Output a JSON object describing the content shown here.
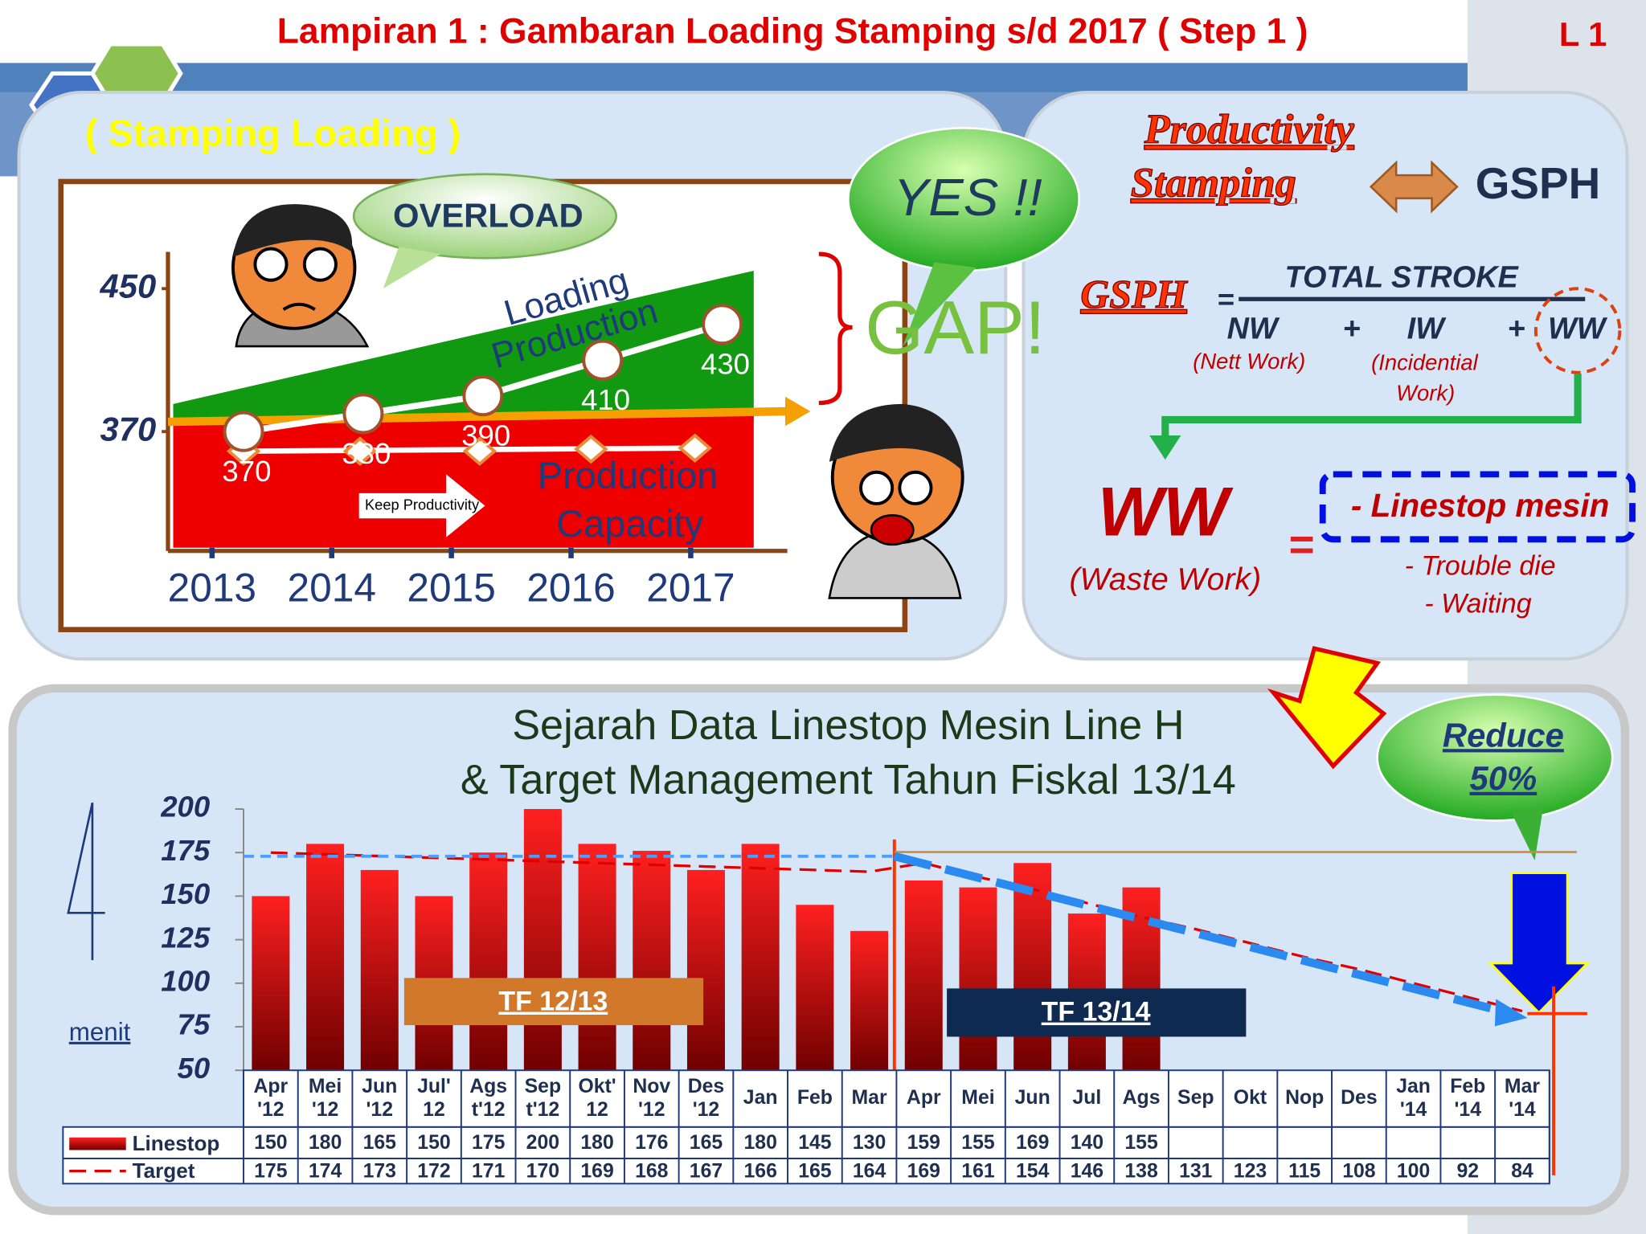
{
  "header": {
    "title": "Lampiran 1 : Gambaran Loading Stamping s/d 2017 ( Step 1 )",
    "page": "L 1"
  },
  "gsph_panel": {
    "title_lines": [
      "Productivity",
      "Stamping"
    ],
    "gsph": "GSPH",
    "formula": {
      "lhs": "GSPH",
      "eq": "=",
      "numerator": "TOTAL STROKE",
      "terms": [
        "NW",
        "+",
        "IW",
        "+",
        "WW"
      ],
      "notes": [
        "(Nett Work)",
        "(Incidential",
        "Work)"
      ]
    },
    "ww": {
      "label": "WW",
      "note": "(Waste Work)",
      "eq": "=",
      "items": [
        "- Linestop mesin",
        "- Trouble die",
        "- Waiting"
      ]
    }
  },
  "chart_data": [
    {
      "type": "line",
      "title": "( Stamping Loading )",
      "categories": [
        "2013",
        "2014",
        "2015",
        "2016",
        "2017"
      ],
      "series": [
        {
          "name": "Loading",
          "color": "#ffffff",
          "values": [
            370,
            380,
            390,
            410,
            430
          ]
        }
      ],
      "ylim": [
        305,
        470
      ],
      "yticks": [
        370,
        450
      ],
      "annotations": {
        "overload": "OVERLOAD",
        "loading": "Loading",
        "production": "Production",
        "capacity_lines": [
          "Production",
          "Capacity"
        ],
        "keep": "Keep Productivity",
        "yes": "YES !!",
        "gap": "GAP!"
      }
    },
    {
      "type": "bar",
      "title": [
        "Sejarah Data Linestop Mesin Line H",
        "& Target Management Tahun Fiskal 13/14"
      ],
      "y_label": "menit",
      "categories": [
        "Apr '12",
        "Mei '12",
        "Jun '12",
        "Jul' 12",
        "Ags t'12",
        "Sep t'12",
        "Okt' 12",
        "Nov '12",
        "Des '12",
        "Jan",
        "Feb",
        "Mar",
        "Apr",
        "Mei",
        "Jun",
        "Jul",
        "Ags",
        "Sep",
        "Okt",
        "Nop",
        "Des",
        "Jan '14",
        "Feb '14",
        "Mar '14"
      ],
      "series": [
        {
          "name": "Linestop",
          "color": "#cc0000",
          "values": [
            150,
            180,
            165,
            150,
            175,
            200,
            180,
            176,
            165,
            180,
            145,
            130,
            159,
            155,
            169,
            140,
            155,
            null,
            null,
            null,
            null,
            null,
            null,
            null
          ]
        },
        {
          "name": "Target",
          "color": "#e00000",
          "values": [
            175,
            174,
            173,
            172,
            171,
            170,
            169,
            168,
            167,
            166,
            165,
            164,
            169,
            161,
            154,
            146,
            138,
            131,
            123,
            115,
            108,
            100,
            92,
            84
          ]
        }
      ],
      "ylim": [
        50,
        200
      ],
      "yticks": [
        50,
        75,
        100,
        125,
        150,
        175,
        200
      ],
      "annotations": {
        "tf1": "TF 12/13",
        "tf2": "TF 13/14",
        "reduce": [
          "Reduce",
          "50%"
        ]
      }
    }
  ]
}
